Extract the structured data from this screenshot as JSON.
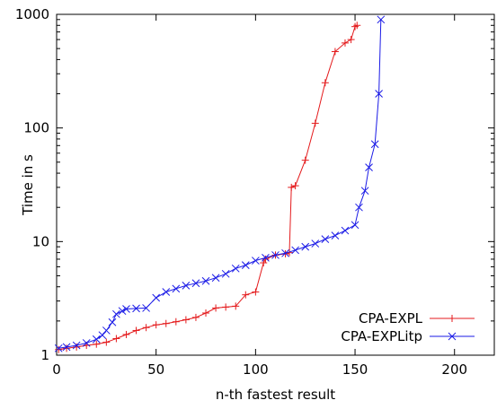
{
  "chart_data": {
    "type": "line",
    "xlabel": "n-th fastest result",
    "ylabel": "Time in s",
    "xlim": [
      0,
      220
    ],
    "ylim": [
      1,
      1000
    ],
    "yscale": "log",
    "x_ticks": [
      0,
      50,
      100,
      150,
      200
    ],
    "y_ticks": [
      1,
      10,
      100,
      1000
    ],
    "x_tick_labels": [
      "0",
      "50",
      "100",
      "150",
      "200"
    ],
    "y_tick_labels": [
      "1",
      "10",
      "100",
      "1000"
    ],
    "legend_position": "bottom-right",
    "grid": false,
    "series": [
      {
        "name": "CPA-EXPL",
        "color": "#e41a1c",
        "marker": "plus",
        "x": [
          1,
          5,
          10,
          15,
          20,
          25,
          30,
          35,
          40,
          45,
          50,
          55,
          60,
          65,
          70,
          75,
          80,
          85,
          90,
          95,
          100,
          104,
          105,
          110,
          115,
          117,
          118,
          120,
          125,
          130,
          135,
          140,
          145,
          148,
          150,
          151
        ],
        "y": [
          1.12,
          1.15,
          1.18,
          1.22,
          1.25,
          1.3,
          1.4,
          1.52,
          1.65,
          1.75,
          1.85,
          1.9,
          1.97,
          2.05,
          2.15,
          2.35,
          2.6,
          2.65,
          2.7,
          3.4,
          3.6,
          6.5,
          7.0,
          7.6,
          7.8,
          8.0,
          30,
          31,
          52,
          110,
          250,
          470,
          560,
          600,
          780,
          800
        ]
      },
      {
        "name": "CPA-EXPLitp",
        "color": "#1a1ae6",
        "marker": "x",
        "x": [
          1,
          5,
          10,
          15,
          20,
          23,
          25,
          28,
          30,
          33,
          35,
          40,
          45,
          50,
          55,
          60,
          65,
          70,
          75,
          80,
          85,
          90,
          95,
          100,
          105,
          110,
          115,
          120,
          125,
          130,
          135,
          140,
          145,
          150,
          152,
          155,
          157,
          160,
          162,
          163
        ],
        "y": [
          1.15,
          1.18,
          1.22,
          1.28,
          1.38,
          1.5,
          1.65,
          1.95,
          2.3,
          2.45,
          2.55,
          2.58,
          2.6,
          3.2,
          3.6,
          3.85,
          4.1,
          4.3,
          4.5,
          4.8,
          5.2,
          5.8,
          6.2,
          6.8,
          7.2,
          7.6,
          7.9,
          8.4,
          9.0,
          9.6,
          10.5,
          11.3,
          12.5,
          14.0,
          20,
          28,
          45,
          72,
          200,
          900
        ]
      }
    ]
  }
}
